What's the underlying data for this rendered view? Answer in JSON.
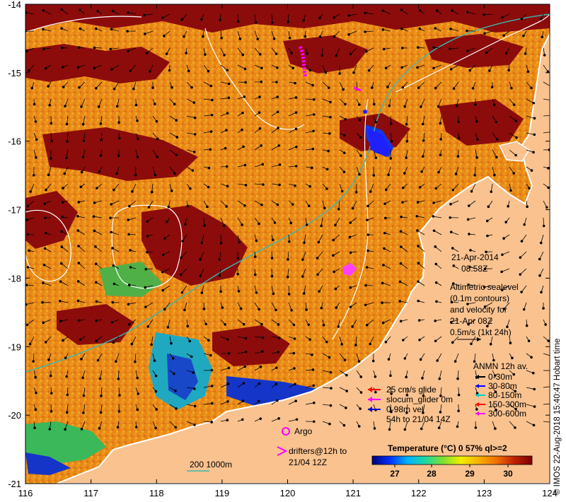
{
  "map": {
    "x_ticks": [
      "116",
      "117",
      "118",
      "119",
      "120",
      "121",
      "122",
      "123",
      "124"
    ],
    "y_ticks": [
      "-14",
      "-15",
      "-16",
      "-17",
      "-18",
      "-19",
      "-20",
      "-21"
    ],
    "colors": {
      "land": "#f9c28f",
      "coast": "#ffffff",
      "warm": "#8c0c0c",
      "mid": "#e87d16",
      "cool": "#1535c8",
      "contour": "#ffffff",
      "shelf": "#3ab8b0"
    }
  },
  "date_label": "21-Apr-2014",
  "time_label": "08:58Z",
  "sealevel_legend": {
    "lines": [
      "Altimetric sealevel",
      "(0.1m contours)",
      "and velocity for",
      "21-Apr 08Z",
      "0.5m/s (1kt 24h)"
    ]
  },
  "anmn_legend": {
    "title": "ANMN 12h av.",
    "items": [
      {
        "label": "0-30m",
        "color": "#000000"
      },
      {
        "label": "30-80m",
        "color": "#0000ff"
      },
      {
        "label": "80-150m",
        "color": "#00cccc"
      },
      {
        "label": "150-300m",
        "color": "#ff0000"
      },
      {
        "label": "300-600m",
        "color": "#ff00ff"
      }
    ]
  },
  "glider_legend": {
    "items": [
      {
        "label": "25 cm/s glide",
        "color": "#ff0000"
      },
      {
        "label": "slocum_glider 0m",
        "color": "#ff00ff"
      },
      {
        "label": "0-98m vel",
        "color": "#0000cc"
      }
    ],
    "note": "54h to 21/04 14Z"
  },
  "argo_label": "Argo",
  "drifters_label": [
    "drifters@12h to",
    "21/04 12Z"
  ],
  "isobath_label": "200  1000m",
  "colorbar": {
    "title": "Temperature (°C) 0 57% ql>=2",
    "ticks": [
      "27",
      "28",
      "29",
      "30"
    ],
    "stops": [
      "#00007a",
      "#0030ff",
      "#00b4ff",
      "#20d8a0",
      "#80e030",
      "#f0f000",
      "#f8b000",
      "#f07000",
      "#c02000",
      "#7a0000"
    ]
  },
  "credit": "© IMOS 22-Aug-2018 15:40:47 Hobart time"
}
